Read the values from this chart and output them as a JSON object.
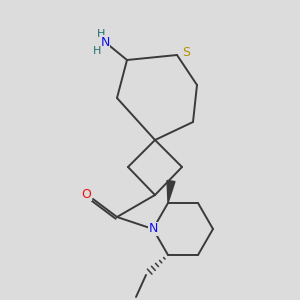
{
  "bg_color": "#dcdcdc",
  "bond_color": "#3a3a3a",
  "bond_width": 1.4,
  "atom_colors": {
    "N": "#1010ee",
    "O": "#ee1010",
    "S": "#b89000",
    "NH2_N": "#1010ee",
    "NH2_H": "#207070"
  },
  "font_size": 8.5,
  "fig_size": [
    3.0,
    3.0
  ],
  "dpi": 100
}
